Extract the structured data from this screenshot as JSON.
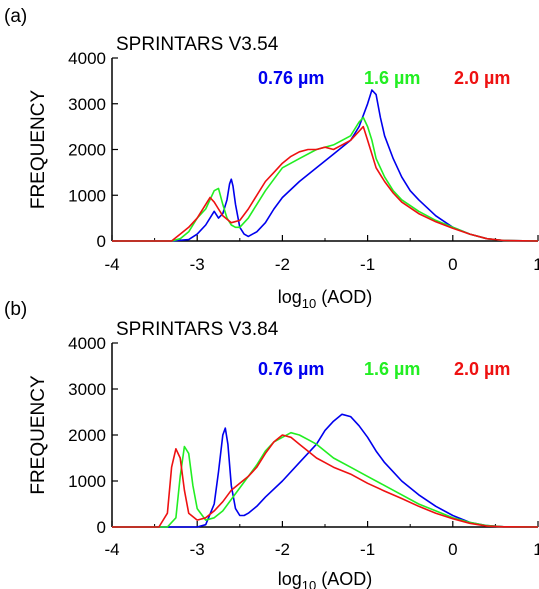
{
  "chart_data": [
    {
      "type": "line",
      "panel_label": "(a)",
      "title": "SPRINTARS V3.54",
      "xlabel": "log10 (AOD)",
      "xlabel_main": "log",
      "xlabel_sub": "10",
      "xlabel_rest": " (AOD)",
      "ylabel": "FREQUENCY",
      "xlim": [
        -4,
        1
      ],
      "ylim": [
        0,
        4000
      ],
      "xticks": [
        -4,
        -3,
        -2,
        -1,
        0,
        1
      ],
      "yticks": [
        0,
        1000,
        2000,
        3000,
        4000
      ],
      "xticks_labels": [
        "-4",
        "-3",
        "-2",
        "-1",
        "0",
        "1"
      ],
      "yticks_labels": [
        "0",
        "1000",
        "2000",
        "3000",
        "4000"
      ],
      "grid": false,
      "legend_position": "top-right",
      "series": [
        {
          "name": "0.76 µm",
          "color": "#0000ee",
          "x": [
            -4,
            -3.3,
            -3.1,
            -3.0,
            -2.9,
            -2.85,
            -2.8,
            -2.75,
            -2.7,
            -2.65,
            -2.62,
            -2.6,
            -2.58,
            -2.55,
            -2.5,
            -2.45,
            -2.4,
            -2.3,
            -2.2,
            -2.1,
            -2.0,
            -1.8,
            -1.6,
            -1.4,
            -1.2,
            -1.1,
            -1.0,
            -0.95,
            -0.9,
            -0.85,
            -0.8,
            -0.7,
            -0.6,
            -0.5,
            -0.4,
            -0.2,
            0.0,
            0.2,
            0.4,
            0.6,
            1.0
          ],
          "y": [
            0,
            0,
            30,
            150,
            350,
            500,
            650,
            500,
            600,
            900,
            1250,
            1350,
            1200,
            800,
            300,
            150,
            100,
            200,
            400,
            700,
            950,
            1300,
            1600,
            1900,
            2200,
            2500,
            3000,
            3300,
            3200,
            2700,
            2300,
            1800,
            1400,
            1100,
            900,
            550,
            300,
            150,
            50,
            10,
            0
          ]
        },
        {
          "name": "1.6 µm",
          "color": "#22ee22",
          "x": [
            -4,
            -3.3,
            -3.2,
            -3.1,
            -3.0,
            -2.9,
            -2.8,
            -2.75,
            -2.7,
            -2.65,
            -2.6,
            -2.55,
            -2.5,
            -2.4,
            -2.3,
            -2.2,
            -2.1,
            -2.0,
            -1.8,
            -1.6,
            -1.4,
            -1.2,
            -1.1,
            -1.05,
            -1.0,
            -0.95,
            -0.9,
            -0.8,
            -0.7,
            -0.6,
            -0.4,
            -0.2,
            0.0,
            0.2,
            0.4,
            0.6,
            1.0
          ],
          "y": [
            0,
            0,
            50,
            200,
            500,
            700,
            1100,
            1150,
            800,
            500,
            350,
            300,
            300,
            500,
            800,
            1100,
            1350,
            1600,
            1800,
            2000,
            2100,
            2300,
            2600,
            2700,
            2500,
            2200,
            1800,
            1400,
            1100,
            900,
            650,
            450,
            300,
            150,
            50,
            10,
            0
          ]
        },
        {
          "name": "2.0 µm",
          "color": "#ee1111",
          "x": [
            -4,
            -3.3,
            -3.2,
            -3.1,
            -3.0,
            -2.9,
            -2.85,
            -2.8,
            -2.75,
            -2.7,
            -2.6,
            -2.5,
            -2.4,
            -2.3,
            -2.2,
            -2.1,
            -2.0,
            -1.9,
            -1.8,
            -1.7,
            -1.6,
            -1.5,
            -1.4,
            -1.3,
            -1.2,
            -1.1,
            -1.05,
            -1.0,
            -0.95,
            -0.9,
            -0.8,
            -0.7,
            -0.6,
            -0.4,
            -0.2,
            0.0,
            0.2,
            0.4,
            0.6,
            1.0
          ],
          "y": [
            0,
            0,
            150,
            300,
            500,
            800,
            950,
            850,
            700,
            550,
            400,
            450,
            700,
            1000,
            1300,
            1500,
            1700,
            1850,
            1950,
            2000,
            2000,
            2050,
            2000,
            2100,
            2200,
            2400,
            2500,
            2200,
            1900,
            1600,
            1300,
            1050,
            850,
            600,
            420,
            280,
            150,
            50,
            10,
            0
          ]
        }
      ]
    },
    {
      "type": "line",
      "panel_label": "(b)",
      "title": "SPRINTARS V3.84",
      "xlabel": "log10 (AOD)",
      "xlabel_main": "log",
      "xlabel_sub": "10",
      "xlabel_rest": " (AOD)",
      "ylabel": "FREQUENCY",
      "xlim": [
        -4,
        1
      ],
      "ylim": [
        0,
        4000
      ],
      "xticks": [
        -4,
        -3,
        -2,
        -1,
        0,
        1
      ],
      "yticks": [
        0,
        1000,
        2000,
        3000,
        4000
      ],
      "xticks_labels": [
        "-4",
        "-3",
        "-2",
        "-1",
        "0",
        "1"
      ],
      "yticks_labels": [
        "0",
        "1000",
        "2000",
        "3000",
        "4000"
      ],
      "grid": false,
      "legend_position": "top-right",
      "series": [
        {
          "name": "0.76 µm",
          "color": "#0000ee",
          "x": [
            -4,
            -3.0,
            -2.9,
            -2.8,
            -2.75,
            -2.7,
            -2.67,
            -2.64,
            -2.6,
            -2.55,
            -2.5,
            -2.45,
            -2.4,
            -2.3,
            -2.2,
            -2.0,
            -1.8,
            -1.6,
            -1.5,
            -1.4,
            -1.3,
            -1.2,
            -1.1,
            -1.0,
            -0.9,
            -0.8,
            -0.7,
            -0.6,
            -0.4,
            -0.2,
            0.0,
            0.2,
            0.4,
            0.6,
            1.0
          ],
          "y": [
            0,
            0,
            50,
            500,
            1200,
            2000,
            2150,
            1800,
            900,
            400,
            250,
            250,
            300,
            450,
            650,
            1000,
            1400,
            1800,
            2100,
            2300,
            2450,
            2400,
            2200,
            1950,
            1650,
            1400,
            1200,
            1000,
            700,
            450,
            250,
            100,
            30,
            5,
            0
          ]
        },
        {
          "name": "1.6 µm",
          "color": "#22ee22",
          "x": [
            -4,
            -3.35,
            -3.25,
            -3.2,
            -3.15,
            -3.1,
            -3.05,
            -3.0,
            -2.9,
            -2.8,
            -2.7,
            -2.6,
            -2.5,
            -2.4,
            -2.3,
            -2.2,
            -2.1,
            -2.0,
            -1.9,
            -1.8,
            -1.7,
            -1.6,
            -1.5,
            -1.4,
            -1.2,
            -1.0,
            -0.8,
            -0.6,
            -0.4,
            -0.2,
            0.0,
            0.2,
            0.4,
            0.6,
            1.0
          ],
          "y": [
            0,
            0,
            200,
            1100,
            1750,
            1600,
            900,
            400,
            150,
            200,
            350,
            600,
            850,
            1100,
            1350,
            1650,
            1850,
            1950,
            2050,
            2000,
            1900,
            1800,
            1650,
            1500,
            1300,
            1100,
            900,
            700,
            500,
            350,
            200,
            100,
            30,
            5,
            0
          ]
        },
        {
          "name": "2.0 µm",
          "color": "#ee1111",
          "x": [
            -4,
            -3.45,
            -3.35,
            -3.3,
            -3.25,
            -3.2,
            -3.15,
            -3.1,
            -3.0,
            -2.9,
            -2.8,
            -2.7,
            -2.6,
            -2.5,
            -2.4,
            -2.3,
            -2.2,
            -2.1,
            -2.0,
            -1.9,
            -1.8,
            -1.7,
            -1.6,
            -1.5,
            -1.4,
            -1.2,
            -1.0,
            -0.8,
            -0.6,
            -0.4,
            -0.2,
            0.0,
            0.2,
            0.4,
            0.6,
            1.0
          ],
          "y": [
            0,
            0,
            300,
            1300,
            1700,
            1500,
            800,
            300,
            150,
            200,
            350,
            550,
            800,
            950,
            1100,
            1300,
            1600,
            1850,
            2000,
            1950,
            1800,
            1650,
            1500,
            1400,
            1300,
            1150,
            950,
            780,
            620,
            450,
            300,
            180,
            80,
            20,
            5,
            0
          ]
        }
      ]
    }
  ]
}
